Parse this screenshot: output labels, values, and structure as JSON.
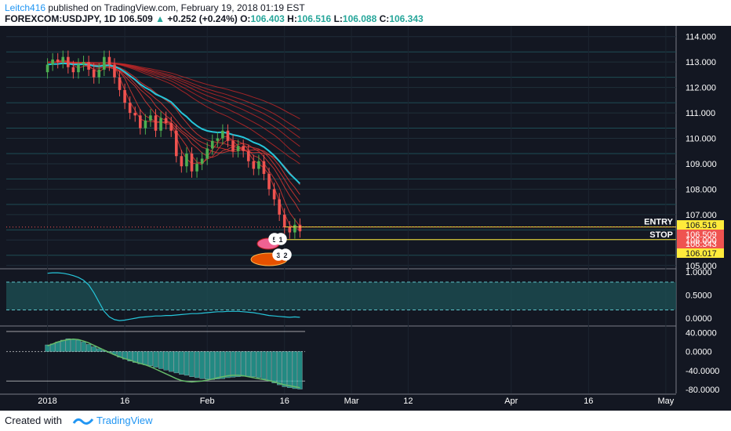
{
  "header": {
    "author": "Leitch416",
    "published": "published on TradingView.com, February 19, 2018 01:19 EST",
    "symbol": "FOREXCOM:USDJPY, 1D",
    "last": "106.509",
    "up_arrow": "▲",
    "change": "+0.252 (+0.24%)",
    "o_label": "O:",
    "o_value": "106.403",
    "h_label": "H:",
    "h_value": "106.516",
    "l_label": "L:",
    "l_value": "106.088",
    "c_label": "C:",
    "c_value": "106.343"
  },
  "footer": {
    "created_with": "Created with",
    "brand": "TradingView"
  },
  "chart_data": {
    "type": "candlestick",
    "title": "FOREXCOM:USDJPY, 1D",
    "ylim": [
      104.9,
      114.3
    ],
    "y_ticks": [
      "114.000",
      "113.000",
      "112.000",
      "111.000",
      "110.000",
      "109.000",
      "108.000",
      "107.000",
      "106.000",
      "105.000"
    ],
    "x_ticks": [
      {
        "label": "2018",
        "day": 0
      },
      {
        "label": "16",
        "day": 15
      },
      {
        "label": "Feb",
        "day": 31
      },
      {
        "label": "16",
        "day": 46
      },
      {
        "label": "Mar",
        "day": 59
      },
      {
        "label": "12",
        "day": 70
      },
      {
        "label": "Apr",
        "day": 90
      },
      {
        "label": "16",
        "day": 105
      },
      {
        "label": "May",
        "day": 120
      }
    ],
    "x_range_days": [
      -8,
      122
    ],
    "candle_start_day": 0,
    "closes": [
      112.9,
      113.1,
      113.0,
      113.2,
      112.8,
      112.6,
      112.9,
      113.0,
      112.7,
      112.4,
      112.7,
      113.2,
      112.9,
      112.4,
      111.9,
      111.4,
      111.0,
      110.9,
      110.4,
      110.7,
      110.9,
      110.3,
      110.8,
      110.6,
      110.3,
      109.3,
      108.9,
      109.4,
      108.7,
      109.0,
      109.2,
      109.6,
      109.9,
      110.0,
      110.3,
      109.9,
      109.5,
      109.7,
      109.5,
      109.1,
      108.8,
      109.1,
      108.6,
      108.0,
      107.6,
      107.0,
      106.5,
      106.3,
      106.6,
      106.343
    ],
    "current_levels": [
      {
        "value": "106.516",
        "color": "#ffeb3b"
      },
      {
        "value": "106.509",
        "color": "#ef5350"
      },
      {
        "value": "106.343",
        "color": "#ef5350"
      },
      {
        "value": "106.017",
        "color": "#ffeb3b"
      }
    ],
    "annotations": [
      {
        "text": "ENTRY",
        "level": 106.516
      },
      {
        "text": "STOP",
        "level": 106.017
      }
    ],
    "event_badges": [
      "5",
      "1",
      "3",
      "2"
    ],
    "indicator1": {
      "y_ticks": [
        "1.0000",
        "0.5000",
        "0.0000"
      ],
      "ylim": [
        -0.15,
        1.05
      ],
      "band": [
        0.18,
        0.78
      ],
      "values": [
        0.97,
        0.98,
        0.98,
        0.97,
        0.95,
        0.92,
        0.88,
        0.82,
        0.72,
        0.55,
        0.35,
        0.15,
        0.03,
        -0.03,
        -0.05,
        -0.04,
        -0.02,
        0.0,
        0.02,
        0.03,
        0.04,
        0.05,
        0.05,
        0.06,
        0.06,
        0.07,
        0.08,
        0.09,
        0.1,
        0.1,
        0.11,
        0.12,
        0.13,
        0.14,
        0.14,
        0.15,
        0.15,
        0.15,
        0.14,
        0.13,
        0.12,
        0.1,
        0.08,
        0.06,
        0.05,
        0.04,
        0.03,
        0.02,
        0.03,
        0.02
      ]
    },
    "indicator2": {
      "y_ticks": [
        "40.0000",
        "0.0000",
        "-40.0000",
        "-80.0000"
      ],
      "ylim": [
        -88,
        52
      ],
      "hist": [
        14,
        16,
        20,
        24,
        27,
        26,
        24,
        20,
        15,
        10,
        6,
        2,
        -2,
        -6,
        -12,
        -16,
        -20,
        -23,
        -26,
        -28,
        -30,
        -33,
        -36,
        -39,
        -42,
        -45,
        -48,
        -50,
        -53,
        -55,
        -57,
        -58,
        -59,
        -58,
        -57,
        -55,
        -54,
        -53,
        -52,
        -52,
        -53,
        -55,
        -58,
        -62,
        -66,
        -70,
        -74,
        -76,
        -78,
        -79
      ],
      "signal": [
        12,
        16,
        20,
        23,
        25,
        26,
        25,
        22,
        18,
        13,
        8,
        3,
        -2,
        -7,
        -11,
        -15,
        -18,
        -22,
        -25,
        -28,
        -32,
        -37,
        -42,
        -47,
        -52,
        -57,
        -61,
        -63,
        -64,
        -63,
        -62,
        -60,
        -58,
        -55,
        -53,
        -51,
        -50,
        -50,
        -51,
        -53,
        -55,
        -57,
        -59,
        -61,
        -64,
        -67,
        -70,
        -72,
        -74,
        -76
      ]
    }
  }
}
